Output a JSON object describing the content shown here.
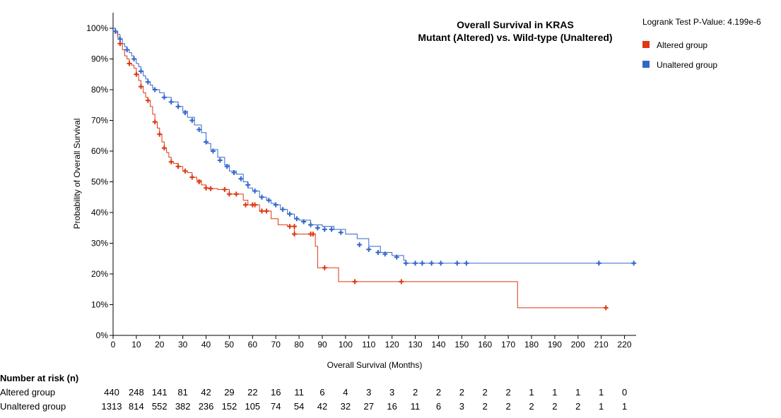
{
  "chart_data": {
    "type": "line",
    "subtype": "kaplan-meier",
    "title_lines": [
      "Overall Survival in KRAS",
      "Mutant (Altered) vs. Wild-type (Unaltered)"
    ],
    "pvalue_text": "Logrank Test P-Value: 4.199e-6",
    "xlabel": "Overall Survival (Months)",
    "ylabel": "Probability of Overall Survival",
    "xlim": [
      0,
      225
    ],
    "ylim": [
      0,
      100
    ],
    "xticks": [
      0,
      10,
      20,
      30,
      40,
      50,
      60,
      70,
      80,
      90,
      100,
      110,
      120,
      130,
      140,
      150,
      160,
      170,
      180,
      190,
      200,
      210,
      220
    ],
    "yticks": [
      0,
      10,
      20,
      30,
      40,
      50,
      60,
      70,
      80,
      90,
      100
    ],
    "ytick_suffix": "%",
    "legend_position": "top-right",
    "series": [
      {
        "name": "Altered group",
        "color": "#dc3912",
        "x": [
          0,
          1,
          2,
          3,
          4,
          5,
          6,
          7,
          8,
          9,
          10,
          11,
          12,
          13,
          14,
          15,
          16,
          17,
          18,
          19,
          20,
          21,
          22,
          23,
          24,
          25,
          26,
          28,
          30,
          32,
          34,
          36,
          38,
          40,
          42,
          45,
          48,
          50,
          53,
          56,
          58,
          60,
          63,
          66,
          68,
          71,
          75,
          78,
          80,
          84,
          87,
          88,
          90,
          93,
          97,
          104,
          110,
          124,
          140,
          160,
          174,
          190,
          212
        ],
        "y": [
          100,
          98.5,
          97,
          95,
          93,
          91,
          90,
          88.5,
          88,
          87,
          85,
          83,
          81,
          79,
          77.5,
          76.5,
          74.5,
          72,
          69.5,
          67.5,
          65.5,
          63,
          61,
          59.5,
          58,
          56.5,
          56,
          55,
          53.5,
          53,
          51.5,
          50.5,
          49,
          48,
          47.8,
          47.5,
          47.5,
          46,
          46,
          44,
          42.5,
          42.5,
          40.5,
          40.5,
          38,
          36,
          35.5,
          33,
          33,
          33,
          29,
          22,
          22,
          22,
          17.5,
          17.5,
          17.5,
          17.5,
          17.5,
          17.5,
          9,
          9,
          9
        ],
        "censors": [
          [
            3,
            95
          ],
          [
            7,
            88.5
          ],
          [
            10,
            85
          ],
          [
            12,
            81
          ],
          [
            15,
            76.5
          ],
          [
            18,
            69.5
          ],
          [
            20,
            65.5
          ],
          [
            22,
            61
          ],
          [
            25,
            56.5
          ],
          [
            28,
            55
          ],
          [
            31,
            53.5
          ],
          [
            34,
            51.5
          ],
          [
            37,
            50
          ],
          [
            40,
            48
          ],
          [
            42,
            47.8
          ],
          [
            48,
            47.5
          ],
          [
            50,
            46
          ],
          [
            53,
            46
          ],
          [
            57,
            42.5
          ],
          [
            60,
            42.5
          ],
          [
            61,
            42.5
          ],
          [
            64,
            40.5
          ],
          [
            66,
            40.5
          ],
          [
            76,
            35.5
          ],
          [
            78,
            35.5
          ],
          [
            78,
            33
          ],
          [
            85,
            33
          ],
          [
            86,
            33
          ],
          [
            91,
            22
          ],
          [
            104,
            17.5
          ],
          [
            124,
            17.5
          ],
          [
            212,
            9
          ]
        ]
      },
      {
        "name": "Unaltered group",
        "color": "#3366cc",
        "x": [
          0,
          1,
          2,
          3,
          4,
          5,
          6,
          7,
          8,
          9,
          10,
          11,
          12,
          13,
          14,
          15,
          16,
          17,
          18,
          20,
          22,
          25,
          28,
          30,
          32,
          35,
          38,
          40,
          42,
          45,
          48,
          50,
          53,
          56,
          58,
          60,
          63,
          66,
          68,
          70,
          72,
          75,
          78,
          80,
          85,
          90,
          95,
          100,
          105,
          110,
          115,
          120,
          125,
          126,
          140,
          160,
          180,
          200,
          224
        ],
        "y": [
          100,
          99,
          98,
          96.5,
          95,
          94,
          93,
          92,
          91,
          90,
          88.5,
          87.5,
          86,
          84.5,
          83.5,
          82.5,
          81.5,
          80.5,
          80,
          79,
          77.5,
          76,
          74.5,
          73,
          71,
          68.5,
          66,
          62.5,
          60.5,
          58,
          55.5,
          53.5,
          52.5,
          50,
          48,
          47,
          45,
          44,
          43,
          42.5,
          41,
          39.5,
          38,
          37.5,
          36,
          35.5,
          34.5,
          33,
          31.5,
          29,
          27,
          26,
          24.5,
          23.5,
          23.5,
          23.5,
          23.5,
          23.5,
          23.5
        ],
        "censors": [
          [
            1,
            99
          ],
          [
            3,
            96.5
          ],
          [
            6,
            93
          ],
          [
            9,
            90
          ],
          [
            12,
            86
          ],
          [
            15,
            82.5
          ],
          [
            18,
            80
          ],
          [
            22,
            77.5
          ],
          [
            25,
            76
          ],
          [
            28,
            74.5
          ],
          [
            31,
            72.5
          ],
          [
            34,
            70
          ],
          [
            37,
            67
          ],
          [
            40,
            63
          ],
          [
            43,
            60
          ],
          [
            46,
            57
          ],
          [
            49,
            55
          ],
          [
            52,
            53
          ],
          [
            55,
            51
          ],
          [
            58,
            49
          ],
          [
            61,
            47
          ],
          [
            64,
            45
          ],
          [
            67,
            44
          ],
          [
            70,
            42.5
          ],
          [
            73,
            41
          ],
          [
            76,
            39.5
          ],
          [
            79,
            38
          ],
          [
            82,
            37
          ],
          [
            85,
            36
          ],
          [
            88,
            35
          ],
          [
            91,
            34.5
          ],
          [
            94,
            34.5
          ],
          [
            98,
            33.5
          ],
          [
            106,
            29.5
          ],
          [
            110,
            28
          ],
          [
            114,
            27
          ],
          [
            117,
            26.5
          ],
          [
            122,
            25.5
          ],
          [
            126,
            23.5
          ],
          [
            130,
            23.5
          ],
          [
            133,
            23.5
          ],
          [
            137,
            23.5
          ],
          [
            141,
            23.5
          ],
          [
            148,
            23.5
          ],
          [
            152,
            23.5
          ],
          [
            209,
            23.5
          ],
          [
            224,
            23.5
          ]
        ]
      }
    ]
  },
  "risk_table": {
    "title": "Number at risk (n)",
    "times": [
      0,
      10,
      20,
      30,
      40,
      50,
      60,
      70,
      80,
      90,
      100,
      110,
      120,
      130,
      140,
      150,
      160,
      170,
      180,
      190,
      200,
      210,
      220
    ],
    "rows": [
      {
        "label": "Altered group",
        "values": [
          "440",
          "248",
          "141",
          "81",
          "42",
          "29",
          "22",
          "16",
          "11",
          "6",
          "4",
          "3",
          "3",
          "2",
          "2",
          "2",
          "2",
          "2",
          "1",
          "1",
          "1",
          "1",
          "0"
        ]
      },
      {
        "label": "Unaltered group",
        "values": [
          "1313",
          "814",
          "552",
          "382",
          "236",
          "152",
          "105",
          "74",
          "54",
          "42",
          "32",
          "27",
          "16",
          "11",
          "6",
          "3",
          "2",
          "2",
          "2",
          "2",
          "2",
          "1",
          "1"
        ]
      }
    ]
  }
}
